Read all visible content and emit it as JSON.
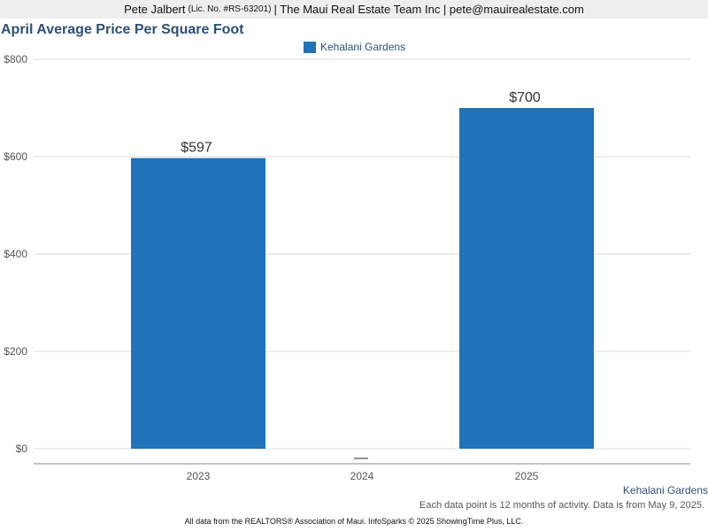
{
  "header": {
    "agent": "Pete Jalbert",
    "license": "(Lic. No. #RS-63201)",
    "rest": "| The Maui Real Estate Team Inc | pete@mauirealestate.com"
  },
  "colors": {
    "series": "#1f73b9",
    "title": "#2d5077"
  },
  "chart_data": {
    "type": "bar",
    "title": "April Average Price Per Square Foot",
    "categories": [
      "2023",
      "2024",
      "2025"
    ],
    "series": [
      {
        "name": "Kehalani Gardens",
        "values": [
          597,
          null,
          700
        ],
        "labels": [
          "$597",
          "",
          "$700"
        ],
        "color": "#1f73b9"
      }
    ],
    "missing_marker": "—",
    "ylim": [
      0,
      800
    ],
    "yticks": [
      0,
      200,
      400,
      600,
      800
    ],
    "ytick_labels": [
      "$0",
      "$200",
      "$400",
      "$600",
      "$800"
    ],
    "xlabel": "",
    "ylabel": "",
    "grid": true,
    "legend": "top-center"
  },
  "series_caption": "Kehalani Gardens",
  "footnote": "Each data point is 12 months of activity. Data is from May 9, 2025.",
  "source": "All data from the REALTORS® Association of Maui. InfoSparks © 2025 ShowingTime Plus, LLC."
}
